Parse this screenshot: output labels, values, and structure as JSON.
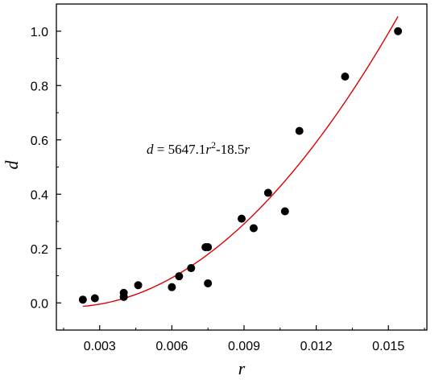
{
  "chart_data": {
    "type": "scatter",
    "xlabel": "r",
    "ylabel": "d",
    "xlim": [
      0.0012,
      0.0166
    ],
    "ylim": [
      -0.1,
      1.1
    ],
    "x_ticks": [
      0.003,
      0.006,
      0.009,
      0.012,
      0.015
    ],
    "x_tick_labels": [
      "0.003",
      "0.006",
      "0.009",
      "0.012",
      "0.015"
    ],
    "y_ticks": [
      0.0,
      0.2,
      0.4,
      0.6,
      0.8,
      1.0
    ],
    "y_tick_labels": [
      "0.0",
      "0.2",
      "0.4",
      "0.6",
      "0.8",
      "1.0"
    ],
    "grid": false,
    "points": {
      "color": "#000000",
      "x": [
        0.0023,
        0.0028,
        0.004,
        0.004,
        0.0046,
        0.006,
        0.0063,
        0.0068,
        0.0074,
        0.0075,
        0.0075,
        0.0089,
        0.0094,
        0.01,
        0.0107,
        0.0113,
        0.0132,
        0.0154
      ],
      "y": [
        0.012,
        0.017,
        0.022,
        0.037,
        0.065,
        0.058,
        0.098,
        0.128,
        0.205,
        0.072,
        0.205,
        0.31,
        0.275,
        0.405,
        0.337,
        0.633,
        0.833,
        1.0
      ]
    },
    "fit": {
      "color": "#e00000",
      "a": 5647.1,
      "b": -18.5,
      "x_range": [
        0.0023,
        0.0154
      ]
    },
    "equation": {
      "lhs": "d",
      "eq": " = 5647.1",
      "var1": "r",
      "exp": "2",
      "mid": "-18.5",
      "var2": "r"
    }
  }
}
